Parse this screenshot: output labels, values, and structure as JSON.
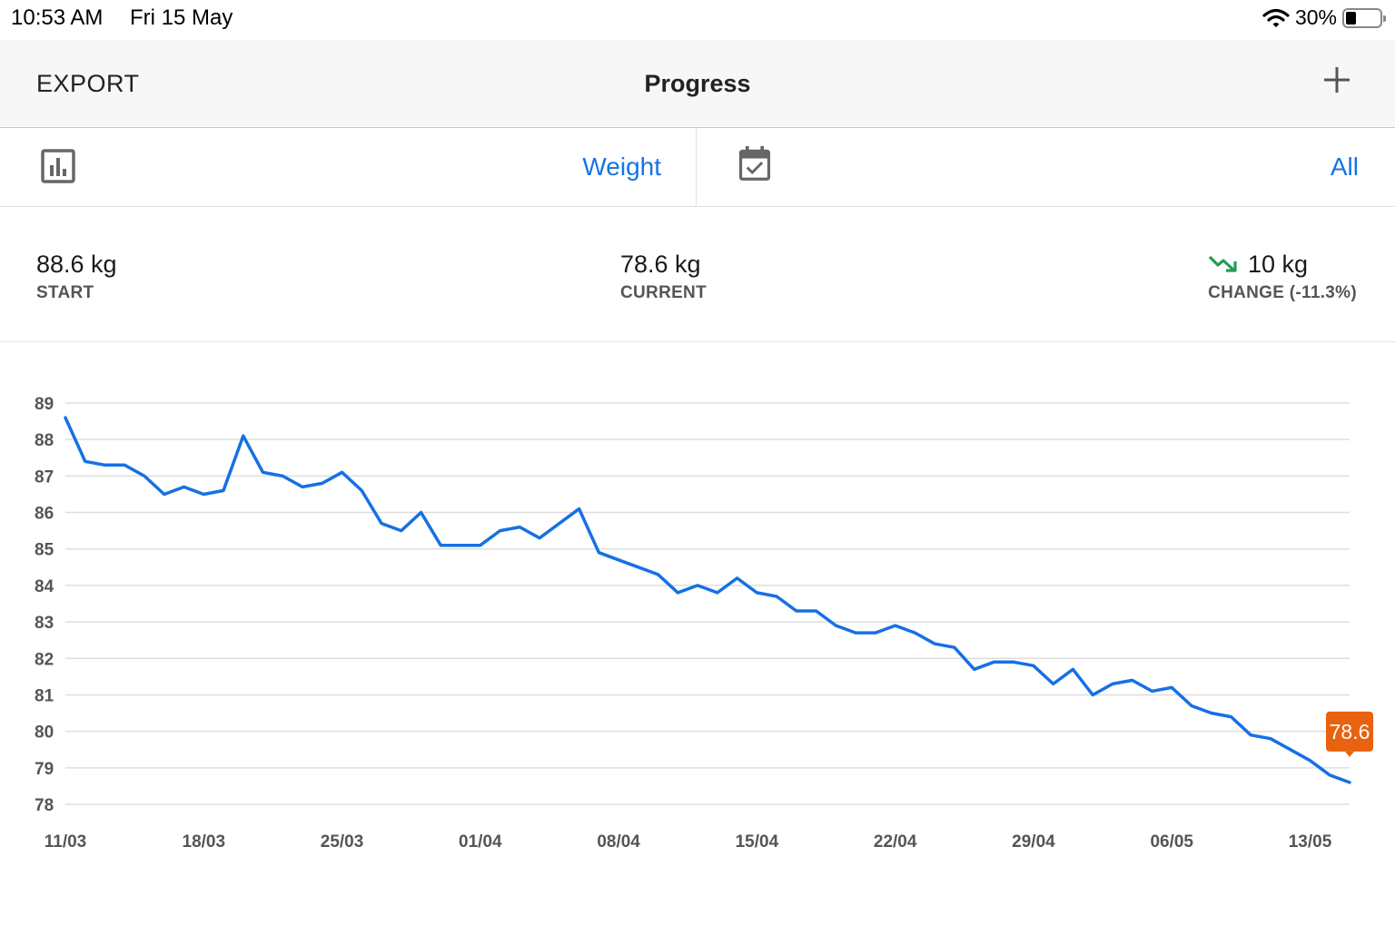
{
  "status_bar": {
    "time": "10:53 AM",
    "date": "Fri 15 May",
    "battery_percent": "30%",
    "battery_level": 0.3
  },
  "nav": {
    "export_label": "EXPORT",
    "title": "Progress",
    "add_icon": "plus-icon"
  },
  "filters": {
    "metric_icon": "bar-chart-icon",
    "metric_value": "Weight",
    "range_icon": "calendar-check-icon",
    "range_value": "All",
    "accent_color": "#1673e6"
  },
  "stats": {
    "start": {
      "value": "88.6 kg",
      "label": "START"
    },
    "current": {
      "value": "78.6 kg",
      "label": "CURRENT"
    },
    "change": {
      "value": "10 kg",
      "label": "CHANGE (-11.3%)",
      "trend_icon": "trend-down-icon",
      "trend_color": "#1f9d55"
    }
  },
  "chart_data": {
    "type": "line",
    "ylim": [
      78,
      89
    ],
    "yticks": [
      "89",
      "88",
      "87",
      "86",
      "85",
      "84",
      "83",
      "82",
      "81",
      "80",
      "79",
      "78"
    ],
    "xticks": [
      "11/03",
      "18/03",
      "25/03",
      "01/04",
      "08/04",
      "15/04",
      "22/04",
      "29/04",
      "06/05",
      "13/05"
    ],
    "grid": true,
    "line_color": "#1570e5",
    "highlight_color": "#e8620f",
    "highlight_label": "78.6",
    "series": [
      {
        "x": [
          "11/03",
          "12/03",
          "13/03",
          "14/03",
          "15/03",
          "16/03",
          "17/03",
          "18/03",
          "19/03",
          "20/03",
          "21/03",
          "22/03",
          "23/03",
          "24/03",
          "25/03",
          "26/03",
          "27/03",
          "28/03",
          "29/03",
          "30/03",
          "31/03",
          "01/04",
          "02/04",
          "03/04",
          "04/04",
          "05/04",
          "06/04",
          "07/04",
          "08/04",
          "09/04",
          "10/04",
          "11/04",
          "12/04",
          "13/04",
          "14/04",
          "15/04",
          "16/04",
          "17/04",
          "18/04",
          "19/04",
          "20/04",
          "21/04",
          "22/04",
          "23/04",
          "24/04",
          "25/04",
          "26/04",
          "27/04",
          "28/04",
          "29/04",
          "30/04",
          "01/05",
          "02/05",
          "03/05",
          "04/05",
          "05/05",
          "06/05",
          "07/05",
          "08/05",
          "09/05",
          "10/05",
          "11/05",
          "12/05",
          "13/05",
          "14/05",
          "15/05"
        ],
        "values": [
          88.6,
          87.4,
          87.3,
          87.3,
          87.0,
          86.5,
          86.7,
          86.5,
          86.6,
          88.1,
          87.1,
          87.0,
          86.7,
          86.8,
          87.1,
          86.6,
          85.7,
          85.5,
          86.0,
          85.1,
          85.1,
          85.1,
          85.5,
          85.6,
          85.3,
          85.7,
          86.1,
          84.9,
          84.7,
          84.5,
          84.3,
          83.8,
          84.0,
          83.8,
          84.2,
          83.8,
          83.7,
          83.3,
          83.3,
          82.9,
          82.7,
          82.7,
          82.9,
          82.7,
          82.4,
          82.3,
          81.7,
          81.9,
          81.9,
          81.8,
          81.3,
          81.7,
          81.0,
          81.3,
          81.4,
          81.1,
          81.2,
          80.7,
          80.5,
          80.4,
          79.9,
          79.8,
          79.5,
          79.2,
          78.8,
          78.6
        ]
      }
    ]
  }
}
